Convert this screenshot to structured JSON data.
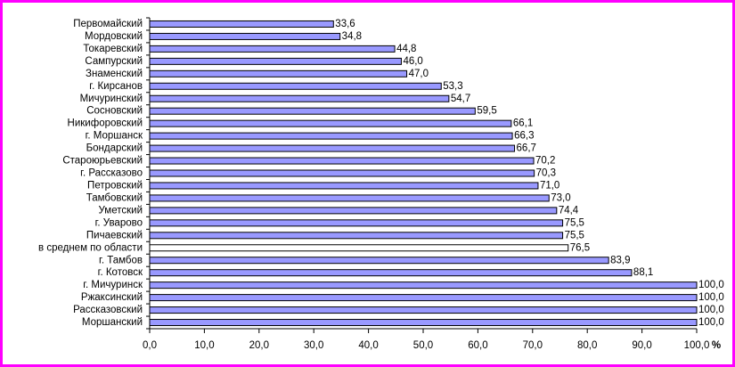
{
  "chart_data": {
    "type": "hbar",
    "categories": [
      "Первомайский",
      "Мордовский",
      "Токаревский",
      "Сампурский",
      "Знаменский",
      "г. Кирсанов",
      "Мичуринский",
      "Сосновский",
      "Никифоровский",
      "г. Моршанск",
      "Бондарский",
      "Староюрьевский",
      "г. Рассказово",
      "Петровский",
      "Тамбовский",
      "Уметский",
      "г.  Уварово",
      "Пичаевский",
      "в среднем по области",
      "г. Тамбов",
      "г. Котовск",
      "г. Мичуринск",
      "Ржаксинский",
      "Рассказовский",
      "Моршанский"
    ],
    "values": [
      33.6,
      34.8,
      44.8,
      46.0,
      47.0,
      53.3,
      54.7,
      59.5,
      66.1,
      66.3,
      66.7,
      70.2,
      70.3,
      71.0,
      73.0,
      74.4,
      75.5,
      75.5,
      76.5,
      83.9,
      88.1,
      100.0,
      100.0,
      100.0,
      100.0
    ],
    "value_labels": [
      "33,6",
      "34,8",
      "44,8",
      "46,0",
      "47,0",
      "53,3",
      "54,7",
      "59,5",
      "66,1",
      "66,3",
      "66,7",
      "70,2",
      "70,3",
      "71,0",
      "73,0",
      "74,4",
      "75,5",
      "75,5",
      "76,5",
      "83,9",
      "88,1",
      "100,0",
      "100,0",
      "100,0",
      "100,0"
    ],
    "colors": [
      "#9999ff",
      "#9999ff",
      "#9999ff",
      "#9999ff",
      "#9999ff",
      "#9999ff",
      "#9999ff",
      "#9999ff",
      "#9999ff",
      "#9999ff",
      "#9999ff",
      "#9999ff",
      "#9999ff",
      "#9999ff",
      "#9999ff",
      "#9999ff",
      "#9999ff",
      "#9999ff",
      "#ffffff",
      "#9999ff",
      "#9999ff",
      "#9999ff",
      "#9999ff",
      "#9999ff",
      "#9999ff"
    ],
    "x_label": "%",
    "xlim": [
      0,
      100
    ],
    "xticks": [
      {
        "value": 0,
        "label": "0,0"
      },
      {
        "value": 10,
        "label": "10,0"
      },
      {
        "value": 20,
        "label": "20,0"
      },
      {
        "value": 30,
        "label": "30,0"
      },
      {
        "value": 40,
        "label": "40,0"
      },
      {
        "value": 50,
        "label": "50,0"
      },
      {
        "value": 60,
        "label": "60,0"
      },
      {
        "value": 70,
        "label": "70,0"
      },
      {
        "value": 80,
        "label": "80,0"
      },
      {
        "value": 90,
        "label": "90,0"
      },
      {
        "value": 100,
        "label": "100,0"
      }
    ],
    "grid": false
  }
}
